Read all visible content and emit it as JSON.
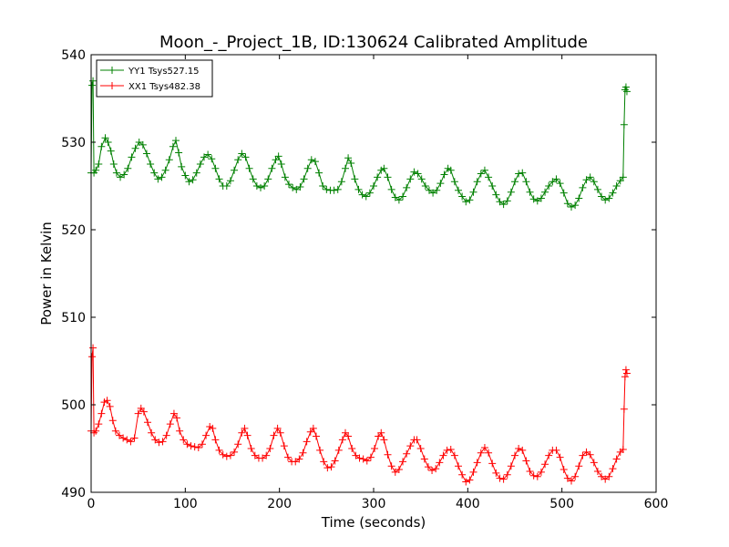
{
  "chart_data": {
    "type": "line",
    "title": "Moon_-_Project_1B, ID:130624 Calibrated Amplitude",
    "xlabel": "Time (seconds)",
    "ylabel": "Power in Kelvin",
    "xlim": [
      0,
      600
    ],
    "ylim": [
      490,
      540
    ],
    "xticks": [
      0,
      100,
      200,
      300,
      400,
      500,
      600
    ],
    "xtick_labels": [
      "0",
      "100",
      "200",
      "300",
      "400",
      "500",
      "600"
    ],
    "yticks": [
      490,
      500,
      510,
      520,
      530,
      540
    ],
    "ytick_labels": [
      "490",
      "500",
      "510",
      "520",
      "530",
      "540"
    ],
    "grid": false,
    "legend_position": "top-left",
    "marker": "+",
    "series": [
      {
        "name": "YY1 Tsys527.15",
        "color": "#008000",
        "points": [
          [
            0,
            526.5
          ],
          [
            1,
            536.5
          ],
          [
            2,
            537.0
          ],
          [
            3,
            526.5
          ],
          [
            5,
            526.8
          ],
          [
            8,
            527.5
          ],
          [
            11,
            529.5
          ],
          [
            15,
            530.5
          ],
          [
            18,
            530.0
          ],
          [
            21,
            529.0
          ],
          [
            24,
            527.5
          ],
          [
            27,
            526.5
          ],
          [
            31,
            526.0
          ],
          [
            35,
            526.3
          ],
          [
            39,
            527.0
          ],
          [
            43,
            528.3
          ],
          [
            47,
            529.3
          ],
          [
            51,
            530.0
          ],
          [
            55,
            529.7
          ],
          [
            59,
            528.7
          ],
          [
            63,
            527.5
          ],
          [
            67,
            526.5
          ],
          [
            71,
            525.8
          ],
          [
            75,
            526.0
          ],
          [
            79,
            526.8
          ],
          [
            83,
            528.0
          ],
          [
            87,
            529.5
          ],
          [
            90,
            530.2
          ],
          [
            93,
            528.8
          ],
          [
            96,
            527.2
          ],
          [
            100,
            526.2
          ],
          [
            104,
            525.5
          ],
          [
            108,
            525.7
          ],
          [
            112,
            526.5
          ],
          [
            116,
            527.5
          ],
          [
            120,
            528.3
          ],
          [
            124,
            528.6
          ],
          [
            128,
            528.1
          ],
          [
            132,
            527.0
          ],
          [
            136,
            525.8
          ],
          [
            140,
            525.0
          ],
          [
            144,
            525.0
          ],
          [
            148,
            525.6
          ],
          [
            152,
            526.8
          ],
          [
            156,
            528.0
          ],
          [
            160,
            528.7
          ],
          [
            164,
            528.3
          ],
          [
            168,
            527.0
          ],
          [
            172,
            525.8
          ],
          [
            176,
            525.0
          ],
          [
            180,
            524.8
          ],
          [
            184,
            525.0
          ],
          [
            188,
            525.8
          ],
          [
            192,
            527.0
          ],
          [
            196,
            528.0
          ],
          [
            199,
            528.4
          ],
          [
            202,
            527.5
          ],
          [
            206,
            526.0
          ],
          [
            210,
            525.2
          ],
          [
            214,
            524.8
          ],
          [
            218,
            524.6
          ],
          [
            222,
            524.9
          ],
          [
            226,
            525.8
          ],
          [
            230,
            527.0
          ],
          [
            234,
            528.0
          ],
          [
            238,
            527.8
          ],
          [
            242,
            526.5
          ],
          [
            246,
            525.0
          ],
          [
            250,
            524.6
          ],
          [
            254,
            524.5
          ],
          [
            258,
            524.5
          ],
          [
            262,
            524.6
          ],
          [
            266,
            525.5
          ],
          [
            270,
            527.0
          ],
          [
            273,
            528.2
          ],
          [
            276,
            527.6
          ],
          [
            280,
            525.8
          ],
          [
            284,
            524.6
          ],
          [
            288,
            524.0
          ],
          [
            292,
            523.8
          ],
          [
            296,
            524.2
          ],
          [
            300,
            525.0
          ],
          [
            304,
            526.0
          ],
          [
            308,
            526.8
          ],
          [
            311,
            527.0
          ],
          [
            315,
            526.0
          ],
          [
            319,
            524.6
          ],
          [
            323,
            523.7
          ],
          [
            327,
            523.4
          ],
          [
            331,
            523.8
          ],
          [
            335,
            524.8
          ],
          [
            339,
            525.8
          ],
          [
            343,
            526.6
          ],
          [
            347,
            526.4
          ],
          [
            351,
            525.8
          ],
          [
            355,
            525.0
          ],
          [
            359,
            524.5
          ],
          [
            363,
            524.2
          ],
          [
            367,
            524.5
          ],
          [
            371,
            525.3
          ],
          [
            375,
            526.3
          ],
          [
            379,
            527.0
          ],
          [
            382,
            526.8
          ],
          [
            386,
            525.5
          ],
          [
            390,
            524.5
          ],
          [
            394,
            523.8
          ],
          [
            398,
            523.2
          ],
          [
            402,
            523.4
          ],
          [
            406,
            524.3
          ],
          [
            410,
            525.5
          ],
          [
            414,
            526.4
          ],
          [
            418,
            526.8
          ],
          [
            422,
            526.0
          ],
          [
            426,
            525.0
          ],
          [
            430,
            524.0
          ],
          [
            434,
            523.2
          ],
          [
            438,
            522.9
          ],
          [
            442,
            523.3
          ],
          [
            446,
            524.3
          ],
          [
            450,
            525.5
          ],
          [
            454,
            526.4
          ],
          [
            458,
            526.5
          ],
          [
            462,
            525.5
          ],
          [
            466,
            524.3
          ],
          [
            470,
            523.5
          ],
          [
            474,
            523.3
          ],
          [
            478,
            523.6
          ],
          [
            482,
            524.3
          ],
          [
            486,
            525.0
          ],
          [
            490,
            525.5
          ],
          [
            494,
            525.8
          ],
          [
            498,
            525.3
          ],
          [
            502,
            524.2
          ],
          [
            506,
            523.0
          ],
          [
            510,
            522.6
          ],
          [
            514,
            522.8
          ],
          [
            518,
            523.6
          ],
          [
            522,
            524.8
          ],
          [
            526,
            525.7
          ],
          [
            530,
            526.0
          ],
          [
            534,
            525.5
          ],
          [
            538,
            524.6
          ],
          [
            542,
            523.8
          ],
          [
            546,
            523.4
          ],
          [
            550,
            523.6
          ],
          [
            554,
            524.2
          ],
          [
            558,
            525.0
          ],
          [
            562,
            525.6
          ],
          [
            565,
            526.0
          ],
          [
            566,
            532.0
          ],
          [
            567,
            536.0
          ],
          [
            568,
            536.3
          ],
          [
            569,
            535.8
          ]
        ]
      },
      {
        "name": "XX1 Tsys482.38",
        "color": "#ff0000",
        "points": [
          [
            0,
            497.0
          ],
          [
            1,
            505.5
          ],
          [
            2,
            506.5
          ],
          [
            3,
            496.8
          ],
          [
            5,
            497.0
          ],
          [
            8,
            497.8
          ],
          [
            11,
            499.0
          ],
          [
            14,
            500.3
          ],
          [
            17,
            500.5
          ],
          [
            20,
            499.8
          ],
          [
            23,
            498.2
          ],
          [
            26,
            497.0
          ],
          [
            30,
            496.5
          ],
          [
            34,
            496.2
          ],
          [
            38,
            496.0
          ],
          [
            42,
            495.8
          ],
          [
            46,
            496.2
          ],
          [
            50,
            499.0
          ],
          [
            53,
            499.6
          ],
          [
            56,
            499.2
          ],
          [
            60,
            498.0
          ],
          [
            64,
            496.8
          ],
          [
            68,
            496.0
          ],
          [
            72,
            495.7
          ],
          [
            76,
            495.8
          ],
          [
            80,
            496.5
          ],
          [
            84,
            497.8
          ],
          [
            88,
            499.0
          ],
          [
            91,
            498.5
          ],
          [
            94,
            497.0
          ],
          [
            98,
            496.0
          ],
          [
            102,
            495.5
          ],
          [
            106,
            495.3
          ],
          [
            110,
            495.2
          ],
          [
            114,
            495.1
          ],
          [
            118,
            495.5
          ],
          [
            122,
            496.5
          ],
          [
            126,
            497.5
          ],
          [
            129,
            497.3
          ],
          [
            132,
            496.0
          ],
          [
            136,
            494.8
          ],
          [
            140,
            494.3
          ],
          [
            144,
            494.1
          ],
          [
            148,
            494.2
          ],
          [
            152,
            494.6
          ],
          [
            156,
            495.5
          ],
          [
            160,
            496.8
          ],
          [
            163,
            497.3
          ],
          [
            166,
            496.5
          ],
          [
            170,
            495.0
          ],
          [
            174,
            494.2
          ],
          [
            178,
            493.9
          ],
          [
            182,
            493.9
          ],
          [
            186,
            494.2
          ],
          [
            190,
            495.0
          ],
          [
            194,
            496.5
          ],
          [
            198,
            497.3
          ],
          [
            201,
            496.8
          ],
          [
            205,
            495.3
          ],
          [
            209,
            494.0
          ],
          [
            213,
            493.5
          ],
          [
            217,
            493.5
          ],
          [
            221,
            493.8
          ],
          [
            225,
            494.5
          ],
          [
            229,
            495.8
          ],
          [
            233,
            496.9
          ],
          [
            236,
            497.3
          ],
          [
            239,
            496.4
          ],
          [
            243,
            494.8
          ],
          [
            247,
            493.5
          ],
          [
            251,
            492.8
          ],
          [
            255,
            492.9
          ],
          [
            259,
            493.6
          ],
          [
            263,
            494.8
          ],
          [
            267,
            496.0
          ],
          [
            270,
            496.8
          ],
          [
            273,
            496.4
          ],
          [
            277,
            495.0
          ],
          [
            281,
            494.2
          ],
          [
            285,
            493.9
          ],
          [
            289,
            493.8
          ],
          [
            293,
            493.6
          ],
          [
            297,
            494.0
          ],
          [
            301,
            495.0
          ],
          [
            305,
            496.4
          ],
          [
            308,
            496.8
          ],
          [
            311,
            496.0
          ],
          [
            315,
            494.3
          ],
          [
            319,
            493.0
          ],
          [
            323,
            492.3
          ],
          [
            327,
            492.6
          ],
          [
            331,
            493.5
          ],
          [
            335,
            494.4
          ],
          [
            339,
            495.3
          ],
          [
            343,
            496.0
          ],
          [
            346,
            496.0
          ],
          [
            350,
            495.0
          ],
          [
            354,
            493.8
          ],
          [
            358,
            492.9
          ],
          [
            362,
            492.5
          ],
          [
            366,
            492.7
          ],
          [
            370,
            493.4
          ],
          [
            374,
            494.2
          ],
          [
            378,
            494.8
          ],
          [
            382,
            494.9
          ],
          [
            386,
            494.2
          ],
          [
            390,
            493.0
          ],
          [
            394,
            492.0
          ],
          [
            398,
            491.2
          ],
          [
            402,
            491.4
          ],
          [
            406,
            492.3
          ],
          [
            410,
            493.4
          ],
          [
            414,
            494.5
          ],
          [
            418,
            495.1
          ],
          [
            422,
            494.5
          ],
          [
            426,
            493.3
          ],
          [
            430,
            492.2
          ],
          [
            434,
            491.6
          ],
          [
            438,
            491.5
          ],
          [
            442,
            492.0
          ],
          [
            446,
            493.0
          ],
          [
            450,
            494.2
          ],
          [
            454,
            495.0
          ],
          [
            458,
            494.8
          ],
          [
            462,
            493.6
          ],
          [
            466,
            492.4
          ],
          [
            470,
            491.9
          ],
          [
            474,
            491.8
          ],
          [
            478,
            492.3
          ],
          [
            482,
            493.2
          ],
          [
            486,
            494.2
          ],
          [
            490,
            494.8
          ],
          [
            494,
            494.8
          ],
          [
            498,
            494.0
          ],
          [
            502,
            492.6
          ],
          [
            506,
            491.6
          ],
          [
            510,
            491.3
          ],
          [
            514,
            491.8
          ],
          [
            518,
            493.0
          ],
          [
            522,
            494.2
          ],
          [
            526,
            494.6
          ],
          [
            530,
            494.3
          ],
          [
            534,
            493.4
          ],
          [
            538,
            492.4
          ],
          [
            542,
            491.8
          ],
          [
            546,
            491.5
          ],
          [
            550,
            491.8
          ],
          [
            554,
            492.7
          ],
          [
            558,
            493.8
          ],
          [
            562,
            494.6
          ],
          [
            565,
            494.9
          ],
          [
            566,
            499.5
          ],
          [
            567,
            503.2
          ],
          [
            568,
            504.0
          ],
          [
            569,
            503.6
          ]
        ]
      }
    ]
  }
}
